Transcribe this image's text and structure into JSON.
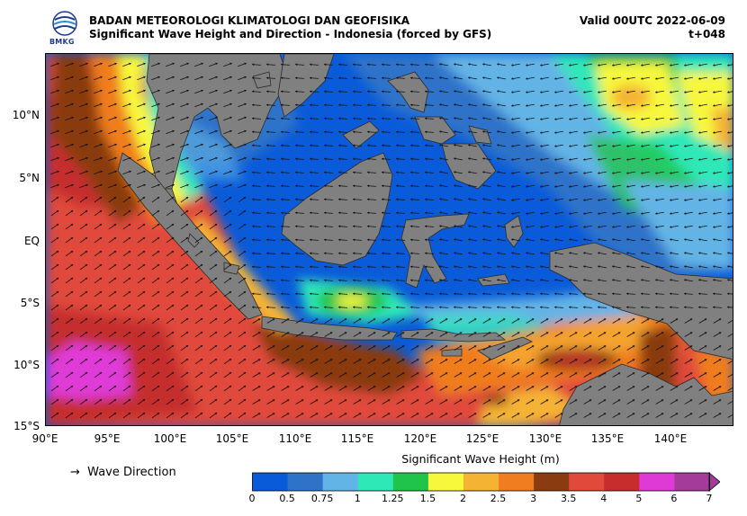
{
  "header": {
    "agency": "BADAN METEOROLOGI KLIMATOLOGI DAN GEOFISIKA",
    "subtitle": "Significant Wave Height and Direction - Indonesia (forced by GFS)",
    "valid": "Valid 00UTC 2022-06-09",
    "lead": "t+048",
    "logo_text": "BMKG"
  },
  "map": {
    "lat_labels": [
      "10°N",
      "5°N",
      "EQ",
      "5°S",
      "10°S",
      "15°S"
    ],
    "lon_labels": [
      "90°E",
      "95°E",
      "100°E",
      "105°E",
      "110°E",
      "115°E",
      "120°E",
      "125°E",
      "130°E",
      "135°E",
      "140°E"
    ],
    "land_color": "#808080",
    "arrow_color": "#111111"
  },
  "legend": {
    "direction_label": "Wave Direction",
    "direction_icon": "arrow-right-icon"
  },
  "colorbar": {
    "title": "Significant Wave Height (m)",
    "ticks": [
      "0",
      "0.5",
      "0.75",
      "1",
      "1.25",
      "1.5",
      "2",
      "2.5",
      "3",
      "3.5",
      "4",
      "5",
      "6",
      "7"
    ],
    "colors": [
      "#0a5bd9",
      "#2f73c9",
      "#63b4e6",
      "#2ee8b8",
      "#21c44a",
      "#f7f73c",
      "#f5b334",
      "#f07d1f",
      "#8a3b10",
      "#e04a3a",
      "#c62d2d",
      "#e03ad6",
      "#a43a9a"
    ]
  }
}
